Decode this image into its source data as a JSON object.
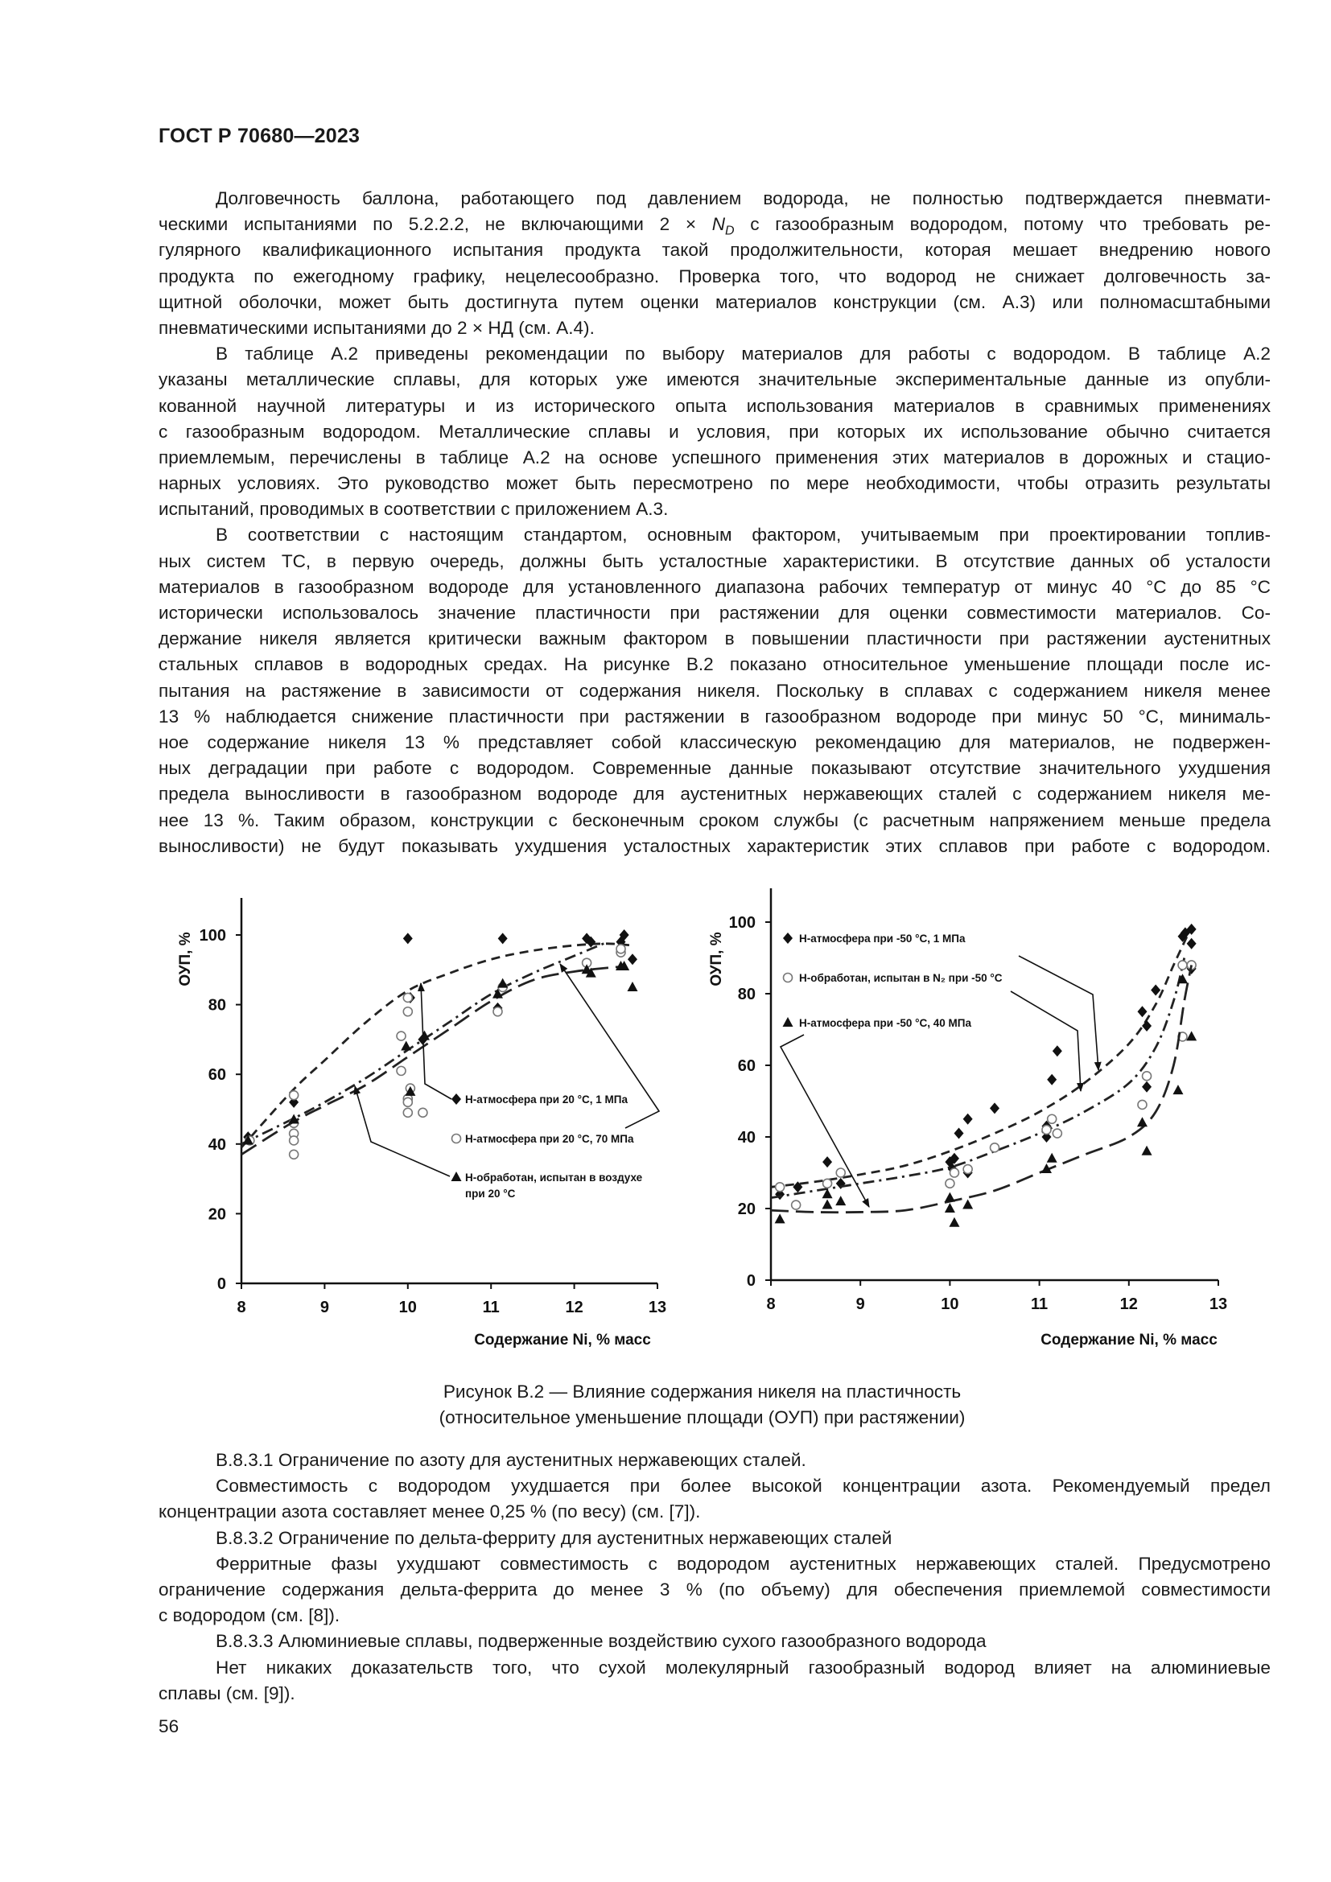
{
  "header": {
    "doc_id": "ГОСТ Р 70680—2023"
  },
  "body_top": {
    "p1": [
      "Долговечность баллона, работающего под давлением водорода, не полностью подтверждается пневмати-",
      {
        "before": "ческими испытаниями по 5.2.2.2, не включающими 2 × ",
        "var": "N",
        "sub": "D",
        "after": " с газообразным водородом, потому что требовать ре-"
      },
      "гулярного квалификационного испытания продукта такой продолжительности, которая мешает внедрению нового",
      "продукта по ежегодному графику, нецелесообразно. Проверка того, что водород не снижает долговечность за-",
      "щитной оболочки, может быть достигнута путем оценки материалов конструкции (см. А.3) или полномасштабными",
      "пневматическими испытаниями до 2 × НД (см. А.4)."
    ],
    "p2": [
      "В таблице А.2 приведены рекомендации по выбору материалов для работы с водородом. В таблице А.2",
      "указаны металлические сплавы, для которых уже имеются значительные экспериментальные данные из опубли-",
      "кованной научной литературы и из исторического опыта использования материалов в сравнимых применениях",
      "с газообразным водородом. Металлические сплавы и условия, при которых их использование обычно считается",
      "приемлемым, перечислены в таблице А.2 на основе успешного применения этих материалов в дорожных и стацио-",
      "нарных условиях. Это руководство может быть пересмотрено по мере необходимости, чтобы отразить результаты",
      "испытаний, проводимых в соответствии с приложением А.3."
    ],
    "p3": [
      "В соответствии с настоящим стандартом, основным фактором, учитываемым при проектировании топлив-",
      "ных систем ТС, в первую очередь, должны быть усталостные характеристики. В отсутствие данных об усталости",
      "материалов в газообразном водороде для установленного диапазона рабочих температур от минус 40 °С до 85 °С",
      "исторически использовалось значение пластичности при растяжении для оценки совместимости материалов. Со-",
      "держание никеля является критически важным фактором в повышении пластичности при растяжении аустенитных",
      "стальных сплавов в водородных средах. На рисунке В.2 показано относительное уменьшение площади после ис-",
      "пытания на растяжение в зависимости от содержания никеля. Поскольку в сплавах с содержанием никеля менее",
      "13 % наблюдается снижение пластичности при растяжении в газообразном водороде при минус 50 °С, минималь-",
      "ное содержание никеля 13 % представляет собой классическую рекомендацию для материалов, не подвержен-",
      "ных деградации при работе с водородом. Современные данные показывают отсутствие значительного ухудшения",
      "предела выносливости в газообразном водороде для аустенитных нержавеющих сталей с содержанием никеля ме-",
      "нее 13 %. Таким образом, конструкции с бесконечным сроком службы (с расчетным напряжением меньше предела",
      "выносливости) не будут показывать ухудшения усталостных характеристик этих сплавов при работе с водородом."
    ]
  },
  "figure": {
    "caption_line1": "Рисунок В.2 — Влияние содержания никеля на пластичность",
    "caption_line2": "(относительное уменьшение площади (ОУП) при растяжении)"
  },
  "chart_data": [
    {
      "type": "scatter",
      "xlabel": "Содержание Ni, % масс",
      "ylabel": "ОУП, %",
      "xlim": [
        8,
        13
      ],
      "ylim": [
        0,
        110
      ],
      "xticks": [
        "8",
        "9",
        "10",
        "11",
        "12",
        "13"
      ],
      "yticks": [
        "0",
        "20",
        "40",
        "60",
        "80",
        "100"
      ],
      "grid": false,
      "series": [
        {
          "name": "Н-атмосфера при 20 °С, 1 МПа",
          "marker": "diamond-filled",
          "line": "dashed",
          "points": [
            [
              8.08,
              42
            ],
            [
              8.63,
              52
            ],
            [
              10.0,
              99
            ],
            [
              10.03,
              82
            ],
            [
              10.18,
              70
            ],
            [
              11.08,
              79
            ],
            [
              11.14,
              99
            ],
            [
              12.15,
              99
            ],
            [
              12.2,
              98
            ],
            [
              12.56,
              98
            ],
            [
              12.6,
              100
            ],
            [
              12.7,
              93
            ]
          ],
          "trend": [
            [
              8,
              39
            ],
            [
              8.6,
              55
            ],
            [
              9,
              64
            ],
            [
              9.5,
              75
            ],
            [
              10,
              84
            ],
            [
              10.5,
              89
            ],
            [
              11,
              93
            ],
            [
              11.5,
              95.5
            ],
            [
              12,
              97
            ],
            [
              12.4,
              97.5
            ],
            [
              12.7,
              97
            ]
          ]
        },
        {
          "name": "Н-атмосфера при 20 °С, 70 МПа",
          "marker": "circle-open",
          "line": "dash-dot",
          "points": [
            [
              8.1,
              41
            ],
            [
              8.63,
              54
            ],
            [
              8.63,
              46
            ],
            [
              8.63,
              43
            ],
            [
              8.63,
              41
            ],
            [
              8.63,
              37
            ],
            [
              9.92,
              71
            ],
            [
              9.92,
              61
            ],
            [
              10.0,
              82
            ],
            [
              10.0,
              78
            ],
            [
              10.03,
              56
            ],
            [
              10.0,
              53
            ],
            [
              10.0,
              52
            ],
            [
              10.0,
              49
            ],
            [
              10.18,
              49
            ],
            [
              11.08,
              78
            ],
            [
              11.14,
              85
            ],
            [
              12.15,
              92
            ],
            [
              12.56,
              95
            ],
            [
              12.56,
              96
            ]
          ],
          "trend": [
            [
              8,
              40
            ],
            [
              8.6,
              47
            ],
            [
              9,
              52
            ],
            [
              9.5,
              59
            ],
            [
              10,
              67
            ],
            [
              10.5,
              75
            ],
            [
              11,
              83
            ],
            [
              11.5,
              89
            ],
            [
              12,
              94
            ],
            [
              12.4,
              98
            ]
          ]
        },
        {
          "name": "Н-обработан, испытан в воздухе при 20 °С",
          "marker": "triangle-filled",
          "line": "long-dash",
          "points": [
            [
              8.08,
              41
            ],
            [
              8.63,
              47
            ],
            [
              9.98,
              68
            ],
            [
              10.03,
              55
            ],
            [
              10.2,
              71
            ],
            [
              11.08,
              83
            ],
            [
              11.14,
              86
            ],
            [
              12.15,
              90
            ],
            [
              12.2,
              89
            ],
            [
              12.56,
              91
            ],
            [
              12.6,
              91
            ],
            [
              12.7,
              85
            ]
          ],
          "trend": [
            [
              8,
              37
            ],
            [
              8.6,
              46
            ],
            [
              9,
              51
            ],
            [
              9.5,
              57
            ],
            [
              10,
              65
            ],
            [
              10.5,
              73
            ],
            [
              11,
              81
            ],
            [
              11.5,
              87
            ],
            [
              12,
              89.5
            ],
            [
              12.6,
              91
            ]
          ]
        }
      ],
      "legend": {
        "line1": "Н-атмосфера при 20 °С, 1 МПа",
        "line2": "Н-атмосфера при 20 °С, 70 МПа",
        "line3a": "Н-обработан, испытан в воздухе",
        "line3b": "при 20 °С"
      }
    },
    {
      "type": "scatter",
      "xlabel": "Содержание Ni, % масс",
      "ylabel": "ОУП, %",
      "xlim": [
        8,
        13
      ],
      "ylim": [
        0,
        105
      ],
      "xticks": [
        "8",
        "9",
        "10",
        "11",
        "12",
        "13"
      ],
      "yticks": [
        "0",
        "20",
        "40",
        "60",
        "80",
        "100"
      ],
      "grid": false,
      "series": [
        {
          "name": "Н-атмосфера при -50 °С, 1 МПа",
          "marker": "diamond-filled",
          "line": "dashed",
          "points": [
            [
              8.1,
              24
            ],
            [
              8.3,
              26
            ],
            [
              8.63,
              33
            ],
            [
              8.78,
              27
            ],
            [
              10.0,
              33
            ],
            [
              10.05,
              34
            ],
            [
              10.03,
              31
            ],
            [
              10.1,
              41
            ],
            [
              10.2,
              45
            ],
            [
              10.2,
              30
            ],
            [
              10.5,
              48
            ],
            [
              11.08,
              43
            ],
            [
              11.08,
              40
            ],
            [
              11.14,
              56
            ],
            [
              11.2,
              64
            ],
            [
              12.15,
              75
            ],
            [
              12.2,
              71
            ],
            [
              12.2,
              54
            ],
            [
              12.3,
              81
            ],
            [
              12.6,
              96
            ],
            [
              12.63,
              97
            ],
            [
              12.7,
              98
            ],
            [
              12.7,
              94
            ],
            [
              12.7,
              87
            ]
          ],
          "trend": [
            [
              8,
              26
            ],
            [
              8.5,
              27.5
            ],
            [
              9,
              29.5
            ],
            [
              9.5,
              32
            ],
            [
              10,
              36
            ],
            [
              10.5,
              41
            ],
            [
              11,
              47
            ],
            [
              11.5,
              55
            ],
            [
              12,
              66
            ],
            [
              12.3,
              77
            ],
            [
              12.5,
              88
            ],
            [
              12.65,
              96
            ]
          ]
        },
        {
          "name": "Н-обработан, испытан в N₂ при -50 °С",
          "marker": "circle-open",
          "line": "dash-dot",
          "points": [
            [
              8.1,
              26
            ],
            [
              8.28,
              21
            ],
            [
              8.63,
              27
            ],
            [
              8.78,
              30
            ],
            [
              10.0,
              27
            ],
            [
              10.05,
              30
            ],
            [
              10.2,
              31
            ],
            [
              10.5,
              37
            ],
            [
              11.08,
              42
            ],
            [
              11.14,
              45
            ],
            [
              11.2,
              41
            ],
            [
              12.15,
              49
            ],
            [
              12.2,
              57
            ],
            [
              12.6,
              68
            ],
            [
              12.6,
              88
            ],
            [
              12.7,
              88
            ]
          ],
          "trend": [
            [
              8,
              23
            ],
            [
              8.5,
              25
            ],
            [
              9,
              27
            ],
            [
              9.5,
              29
            ],
            [
              10,
              31.5
            ],
            [
              10.5,
              36
            ],
            [
              11,
              41
            ],
            [
              11.5,
              47
            ],
            [
              12,
              55
            ],
            [
              12.3,
              65
            ],
            [
              12.5,
              78
            ],
            [
              12.62,
              90
            ]
          ]
        },
        {
          "name": "Н-атмосфера при -50 °С, 40 МПа",
          "marker": "triangle-filled",
          "line": "long-dash",
          "points": [
            [
              8.1,
              17
            ],
            [
              8.63,
              24
            ],
            [
              8.63,
              21
            ],
            [
              8.78,
              22
            ],
            [
              10.0,
              23
            ],
            [
              10.0,
              20
            ],
            [
              10.05,
              16
            ],
            [
              10.2,
              21
            ],
            [
              11.08,
              31
            ],
            [
              11.14,
              34
            ],
            [
              12.15,
              44
            ],
            [
              12.2,
              36
            ],
            [
              12.55,
              53
            ],
            [
              12.6,
              84
            ],
            [
              12.7,
              68
            ]
          ],
          "trend": [
            [
              8,
              19.5
            ],
            [
              8.5,
              19
            ],
            [
              9,
              19
            ],
            [
              9.5,
              19.5
            ],
            [
              10,
              22
            ],
            [
              10.5,
              25
            ],
            [
              11,
              30
            ],
            [
              11.5,
              35
            ],
            [
              12,
              40
            ],
            [
              12.3,
              47
            ],
            [
              12.5,
              60
            ],
            [
              12.62,
              78
            ],
            [
              12.7,
              88
            ]
          ]
        }
      ],
      "legend": {
        "line1": "Н-атмосфера при -50 °С, 1 МПа",
        "line2": "Н-обработан, испытан в N₂ при -50 °С",
        "line3": "Н-атмосфера при -50 °С, 40 МПа"
      }
    }
  ],
  "body_bottom": [
    "В.8.3.1 Ограничение по азоту для аустенитных нержавеющих сталей.",
    "Совместимость с водородом ухудшается при более высокой концентрации азота. Рекомендуемый предел",
    "концентрации азота составляет менее 0,25 % (по весу) (см. [7]).",
    "В.8.3.2 Ограничение по дельта-ферриту для аустенитных нержавеющих сталей",
    "Ферритные фазы ухудшают совместимость с водородом аустенитных нержавеющих сталей. Предусмотрено",
    "ограничение содержания дельта-феррита до менее 3 % (по объему) для обеспечения приемлемой совместимости",
    "с водородом (см. [8]).",
    "В.8.3.3 Алюминиевые сплавы, подверженные воздействию сухого газообразного водорода",
    "Нет никаких доказательств того, что сухой молекулярный газообразный водород влияет на алюминиевые",
    "сплавы (см. [9])."
  ],
  "footer": {
    "page_number": "56"
  }
}
